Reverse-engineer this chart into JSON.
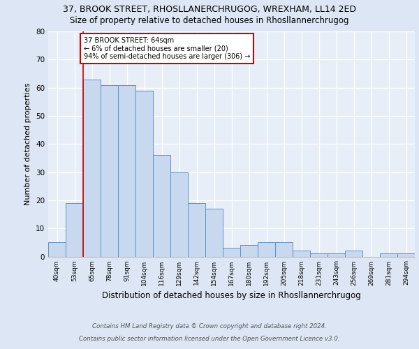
{
  "title1": "37, BROOK STREET, RHOSLLANERCHRUGOG, WREXHAM, LL14 2ED",
  "title2": "Size of property relative to detached houses in Rhosllannerchrugog",
  "xlabel": "Distribution of detached houses by size in Rhosllannerchrugog",
  "ylabel": "Number of detached properties",
  "categories": [
    "40sqm",
    "53sqm",
    "65sqm",
    "78sqm",
    "91sqm",
    "104sqm",
    "116sqm",
    "129sqm",
    "142sqm",
    "154sqm",
    "167sqm",
    "180sqm",
    "192sqm",
    "205sqm",
    "218sqm",
    "231sqm",
    "243sqm",
    "256sqm",
    "269sqm",
    "281sqm",
    "294sqm"
  ],
  "values": [
    5,
    19,
    63,
    61,
    61,
    59,
    36,
    30,
    19,
    17,
    3,
    4,
    5,
    5,
    2,
    1,
    1,
    2,
    0,
    1,
    1
  ],
  "bar_fill": "#c8d8ef",
  "bar_edge": "#6090c8",
  "vline_color": "#cc0000",
  "annotation_text": "37 BROOK STREET: 64sqm\n← 6% of detached houses are smaller (20)\n94% of semi-detached houses are larger (306) →",
  "annotation_box_color": "#ffffff",
  "annotation_box_edge": "#cc0000",
  "bg_color": "#dce6f5",
  "plot_bg_color": "#e8eef8",
  "footer1": "Contains HM Land Registry data © Crown copyright and database right 2024.",
  "footer2": "Contains public sector information licensed under the Open Government Licence v3.0.",
  "ylim": [
    0,
    80
  ],
  "yticks": [
    0,
    10,
    20,
    30,
    40,
    50,
    60,
    70,
    80
  ]
}
